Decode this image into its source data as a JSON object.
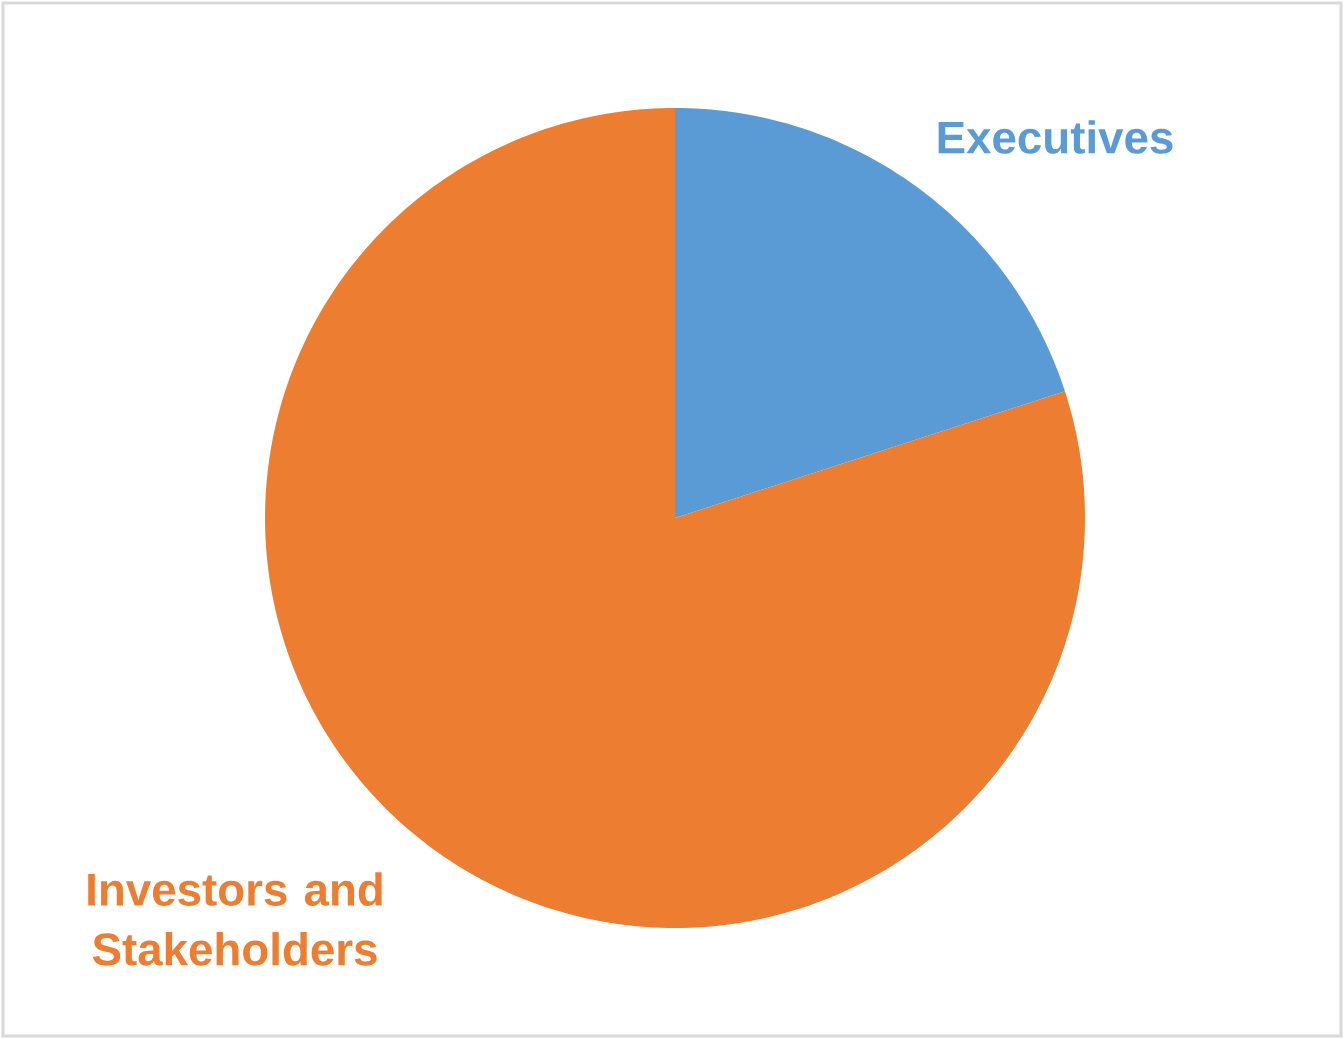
{
  "chart_data": {
    "type": "pie",
    "categories": [
      "Executives",
      "Investors and Stakeholders"
    ],
    "values": [
      20,
      80
    ],
    "colors": [
      "#5b9bd5",
      "#ed7d31"
    ]
  }
}
